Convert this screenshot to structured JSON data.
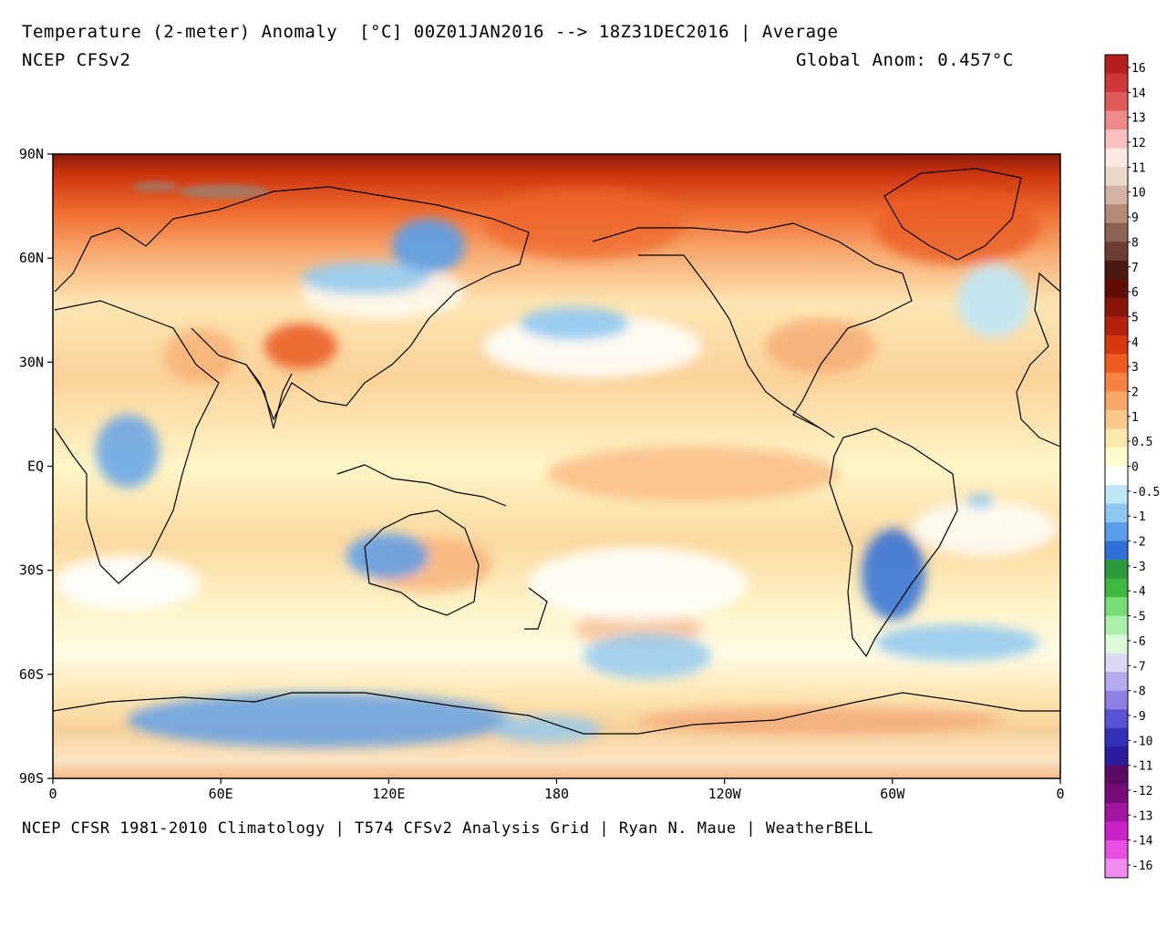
{
  "header": {
    "title": "Temperature (2-meter) Anomaly  [°C] 00Z01JAN2016 --> 18Z31DEC2016 | Average",
    "model": "NCEP CFSv2",
    "global_anom": "Global Anom: 0.457°C"
  },
  "footer": {
    "credit": "NCEP CFSR 1981-2010 Climatology | T574 CFSv2 Analysis Grid | Ryan N. Maue | WeatherBELL"
  },
  "axes": {
    "lat_labels": [
      "90N",
      "60N",
      "30N",
      "EQ",
      "30S",
      "60S",
      "90S"
    ],
    "lon_labels": [
      "0",
      "60E",
      "120E",
      "180",
      "120W",
      "60W",
      "0"
    ]
  },
  "colorbar": {
    "labels": [
      "16",
      "14",
      "13",
      "12",
      "11",
      "10",
      "9",
      "8",
      "7",
      "6",
      "5",
      "4",
      "3",
      "2",
      "1",
      "0.5",
      "0",
      "-0.5",
      "-1",
      "-2",
      "-3",
      "-4",
      "-5",
      "-6",
      "-7",
      "-8",
      "-9",
      "-10",
      "-11",
      "-12",
      "-13",
      "-14",
      "-16"
    ],
    "colors": [
      "#b41e1e",
      "#d03838",
      "#e05a5a",
      "#ee8a8a",
      "#f8c0c0",
      "#fbe9e4",
      "#ead8cd",
      "#d3b3a3",
      "#b48a78",
      "#8c6252",
      "#6a3f32",
      "#4a1a12",
      "#620c08",
      "#8a140a",
      "#b5200c",
      "#d83810",
      "#ee5a20",
      "#f58444",
      "#f8a66a",
      "#fbc88e",
      "#fde8b0",
      "#fffccd",
      "#ffffff",
      "#bfe6f6",
      "#8ec8f0",
      "#5a9eea",
      "#2f6fd8",
      "#2a9a3a",
      "#3fb83f",
      "#78dc78",
      "#aaf0aa",
      "#dafad8",
      "#dcd8f6",
      "#b4aaee",
      "#8c80e4",
      "#5a52d4",
      "#3430b8",
      "#2a1c9a",
      "#5a0c62",
      "#7a0c7a",
      "#a216a2",
      "#cc22c8",
      "#e84ee0",
      "#f28cf0"
    ]
  }
}
